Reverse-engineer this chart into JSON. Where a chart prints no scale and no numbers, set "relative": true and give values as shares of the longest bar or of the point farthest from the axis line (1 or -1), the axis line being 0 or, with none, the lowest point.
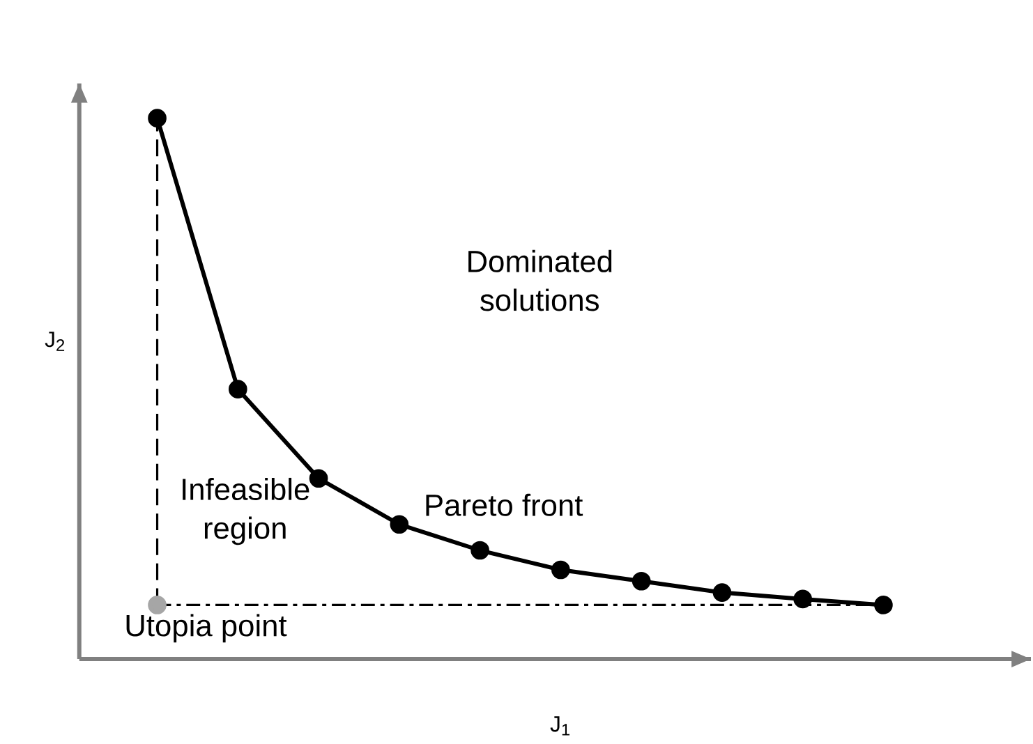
{
  "chart_data": {
    "type": "line",
    "relative": true,
    "xlabel": "J$_{1}$",
    "ylabel": "J$_{2}$",
    "categories": [
      null,
      null,
      null,
      null,
      null,
      null,
      null,
      null,
      null,
      null
    ],
    "series": [
      {
        "name": "Pareto front",
        "color": "#000000",
        "marker": "circle",
        "values": [
          1,
          0.499,
          0.334,
          0.249,
          0.201,
          0.165,
          0.144,
          0.123,
          0.111,
          0.1
        ]
      },
      {
        "name": "Utopia point",
        "color": "#a6a6a6",
        "marker": "circle",
        "values": [
          0.1,
          null,
          null,
          null,
          null,
          null,
          null,
          null,
          null,
          null
        ]
      }
    ],
    "ref_lines": [
      {
        "axis": "y",
        "value": 0.1,
        "line_style": "dashdot",
        "color": "#000000"
      }
    ],
    "annotations": [
      "Dominated solutions",
      "Infeasible region"
    ]
  }
}
